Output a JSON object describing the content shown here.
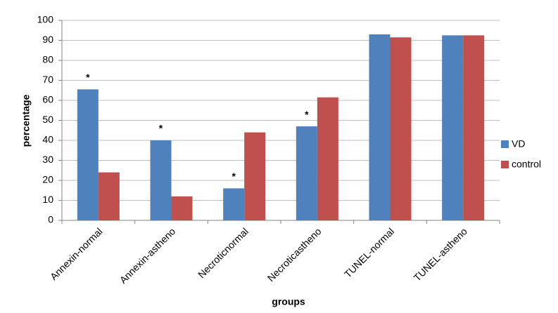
{
  "chart_data": {
    "type": "bar",
    "categories": [
      "Annexin-normal",
      "Annexin-astheno",
      "Necroticnormal",
      "Necroticastheno",
      "TUNEL-normal",
      "TUNEL-astheno"
    ],
    "series": [
      {
        "name": "VD",
        "color": "#4f81bd",
        "values": [
          65.5,
          40,
          16,
          47,
          93,
          92.5
        ]
      },
      {
        "name": "control",
        "color": "#c0504d",
        "values": [
          24,
          12,
          44,
          61.5,
          91.5,
          92.5
        ]
      }
    ],
    "annotations": [
      "*",
      "*",
      "*",
      "*",
      null,
      null
    ],
    "ylim": [
      0,
      100
    ],
    "yticks": [
      0,
      10,
      20,
      30,
      40,
      50,
      60,
      70,
      80,
      90,
      100
    ],
    "grid": true,
    "legend": "right",
    "xlabel": "groups",
    "ylabel": "percentage"
  }
}
